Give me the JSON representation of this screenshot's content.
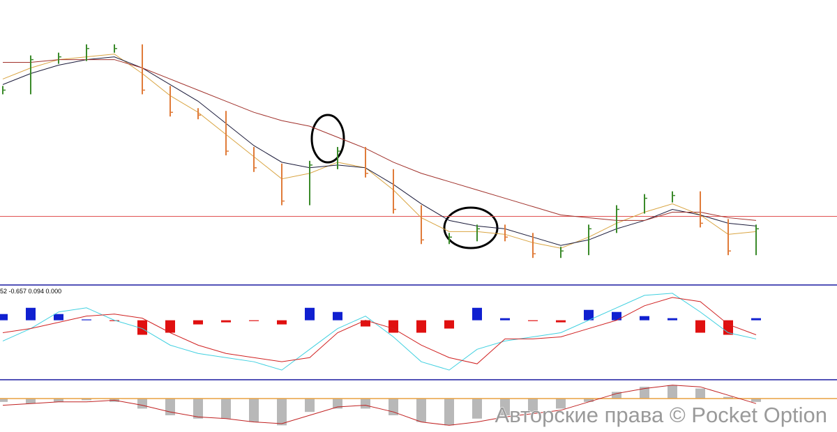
{
  "chart_data": [
    {
      "type": "stock",
      "ylim": [
        0,
        100
      ],
      "level": 22.5,
      "level_color": "#e05050",
      "series": [
        {
          "values": [
            68,
            79,
            80,
            83,
            83,
            68,
            60,
            59,
            46,
            40,
            28,
            41,
            46,
            38,
            25,
            14,
            15,
            18,
            15,
            9,
            10,
            18,
            25,
            29,
            30,
            20,
            10,
            18
          ],
          "up_color": "#3a8a2a",
          "down_color": "#e07b39"
        },
        {
          "values": [
            72,
            76,
            79,
            80,
            81,
            74,
            66,
            60,
            52,
            44,
            36,
            38,
            42,
            40,
            32,
            22,
            17,
            17,
            16,
            13,
            11,
            15,
            20,
            24,
            27,
            23,
            16,
            17
          ],
          "color": "#d9a441"
        },
        {
          "values": [
            70,
            74,
            77,
            79,
            80,
            76,
            70,
            64,
            56,
            48,
            42,
            40,
            41,
            40,
            34,
            27,
            21,
            19,
            18,
            15,
            12,
            14,
            18,
            21,
            25,
            23,
            20,
            19
          ],
          "color": "#1a1a3a"
        },
        {
          "values": [
            78,
            78,
            79,
            79,
            79,
            76,
            72,
            68,
            64,
            60,
            57,
            55,
            51,
            47,
            42,
            38,
            35,
            32,
            29,
            26,
            23,
            22,
            21,
            21,
            24,
            24,
            22,
            21
          ],
          "color": "#a0302a"
        }
      ]
    },
    {
      "type": "macd",
      "label": "52 -0.657 0.094 0.000",
      "ylim": [
        -1.4,
        0.8
      ],
      "histogram": {
        "values": [
          0.15,
          0.3,
          0.15,
          0.02,
          -0.02,
          -0.35,
          -0.3,
          -0.1,
          -0.05,
          -0.02,
          -0.1,
          0.3,
          0.2,
          -0.15,
          -0.3,
          -0.3,
          -0.2,
          0.3,
          0.05,
          -0.02,
          -0.05,
          0.25,
          0.2,
          0.1,
          0.05,
          -0.3,
          -0.35,
          0.05
        ],
        "positive_color": "#1020d0",
        "negative_color": "#e01010"
      },
      "series": [
        {
          "values": [
            -0.5,
            -0.2,
            0.2,
            0.3,
            0.0,
            -0.2,
            -0.6,
            -0.8,
            -0.9,
            -1.0,
            -1.2,
            -0.7,
            -0.2,
            0.1,
            -0.4,
            -1.0,
            -1.2,
            -0.7,
            -0.5,
            -0.4,
            -0.3,
            0.0,
            0.3,
            0.6,
            0.65,
            0.2,
            -0.3,
            -0.45
          ],
          "color": "#40d0e0"
        },
        {
          "values": [
            -0.3,
            -0.2,
            -0.05,
            0.1,
            0.15,
            0.05,
            -0.3,
            -0.6,
            -0.8,
            -0.9,
            -1.0,
            -0.9,
            -0.3,
            0.0,
            -0.2,
            -0.6,
            -0.9,
            -1.05,
            -0.45,
            -0.45,
            -0.4,
            -0.2,
            0.0,
            0.35,
            0.55,
            0.45,
            -0.1,
            -0.35
          ],
          "color": "#d02020"
        }
      ]
    },
    {
      "type": "oscillator",
      "ylim": [
        -1,
        0.5
      ],
      "zero_color": "#e8a040",
      "histogram": {
        "values": [
          -0.1,
          -0.15,
          -0.1,
          -0.05,
          -0.1,
          -0.3,
          -0.5,
          -0.6,
          -0.6,
          -0.7,
          -0.8,
          -0.4,
          -0.3,
          -0.3,
          -0.5,
          -0.7,
          -0.8,
          -0.6,
          -0.5,
          -0.4,
          -0.3,
          -0.1,
          0.2,
          0.35,
          0.4,
          0.3,
          0.05,
          -0.1
        ],
        "color": "#b8b8b8"
      },
      "series": [
        {
          "values": [
            -0.2,
            -0.15,
            -0.1,
            -0.1,
            -0.05,
            -0.2,
            -0.4,
            -0.55,
            -0.6,
            -0.7,
            -0.75,
            -0.5,
            -0.25,
            -0.2,
            -0.4,
            -0.7,
            -0.8,
            -0.7,
            -0.55,
            -0.45,
            -0.35,
            -0.1,
            0.15,
            0.3,
            0.4,
            0.35,
            0.1,
            -0.15
          ],
          "color": "#c02020"
        }
      ]
    }
  ],
  "watermark": "Авторские права © Pocket Option"
}
